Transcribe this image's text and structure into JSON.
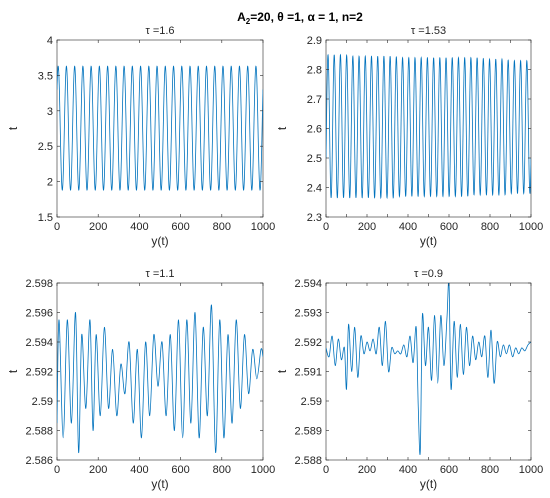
{
  "figure": {
    "title_main": "A",
    "title_sub": "2",
    "title_rest": "=20, θ =1, α = 1, n=2"
  },
  "chart_data": [
    {
      "type": "line",
      "title": "τ =1.6",
      "xlabel": "y(t)",
      "ylabel": "t",
      "xlim": [
        0,
        1000
      ],
      "ylim": [
        1.5,
        4
      ],
      "xticks": [
        0,
        200,
        400,
        600,
        800,
        1000
      ],
      "xtick_labels": [
        "0",
        "200",
        "400",
        "600",
        "800",
        "1000"
      ],
      "yticks": [
        1.5,
        2,
        2.5,
        3,
        3.5,
        4
      ],
      "ytick_labels": [
        "1.5",
        "2",
        "2.5",
        "3",
        "3.5",
        "4"
      ],
      "grid": false,
      "color": "#0072BD",
      "series": [
        {
          "signal": "periodic",
          "approx_cycles": 25,
          "start_value": 3.3,
          "x": [
            0,
            20,
            40,
            60,
            80,
            100,
            120,
            140,
            160,
            180,
            200,
            220,
            240,
            260,
            280,
            300,
            320,
            340,
            360,
            380,
            400,
            420,
            440,
            460,
            480,
            500,
            520,
            540,
            560,
            580,
            600,
            620,
            640,
            660,
            680,
            700,
            720,
            740,
            760,
            780,
            800,
            820,
            840,
            860,
            880,
            900,
            920,
            940,
            960,
            980,
            1000
          ],
          "y": [
            3.3,
            3.63,
            1.88,
            3.63,
            1.88,
            3.63,
            1.88,
            3.63,
            1.88,
            3.63,
            1.88,
            3.63,
            1.88,
            3.63,
            1.88,
            3.63,
            1.88,
            3.63,
            1.88,
            3.63,
            1.88,
            3.63,
            1.88,
            3.63,
            1.88,
            3.63,
            1.88,
            3.63,
            1.88,
            3.63,
            1.88,
            3.63,
            1.88,
            3.63,
            1.88,
            3.63,
            1.88,
            3.63,
            1.88,
            3.63,
            1.88,
            3.63,
            1.88,
            3.63,
            1.88,
            3.63,
            1.88,
            3.63,
            1.88,
            3.63,
            2.0
          ]
        }
      ]
    },
    {
      "type": "line",
      "title": "τ =1.53",
      "xlabel": "y(t)",
      "ylabel": "t",
      "xlim": [
        0,
        1000
      ],
      "ylim": [
        2.3,
        2.9
      ],
      "xticks": [
        0,
        100,
        200,
        300,
        400,
        500,
        600,
        700,
        800,
        900,
        1000
      ],
      "xtick_labels": [
        "0",
        "100",
        "200",
        "300",
        "400",
        "500",
        "600",
        "700",
        "800",
        "900",
        "1000"
      ],
      "yticks": [
        2.3,
        2.4,
        2.5,
        2.6,
        2.7,
        2.8,
        2.9
      ],
      "ytick_labels": [
        "2.3",
        "2.4",
        "2.5",
        "2.6",
        "2.7",
        "2.8",
        "2.9"
      ],
      "grid": false,
      "color": "#0072BD",
      "series": [
        {
          "signal": "periodic",
          "approx_cycles": 33,
          "start_value": 2.5,
          "x": [
            0,
            30,
            60,
            90,
            120,
            150,
            180,
            210,
            240,
            270,
            300,
            330,
            360,
            390,
            420,
            450,
            480,
            510,
            540,
            570,
            600,
            630,
            660,
            690,
            720,
            750,
            780,
            810,
            840,
            870,
            900,
            930,
            960,
            990,
            1000
          ],
          "max_env": [
            2.85,
            2.85,
            2.85,
            2.85,
            2.845,
            2.845,
            2.845,
            2.845,
            2.845,
            2.845,
            2.845,
            2.845,
            2.84,
            2.84,
            2.84,
            2.84,
            2.84,
            2.84,
            2.84,
            2.84,
            2.84,
            2.84,
            2.84,
            2.84,
            2.84,
            2.84,
            2.835,
            2.835,
            2.835,
            2.835,
            2.83,
            2.83,
            2.83,
            2.83,
            2.83
          ],
          "min_env": [
            2.365,
            2.365,
            2.365,
            2.365,
            2.365,
            2.365,
            2.365,
            2.365,
            2.365,
            2.365,
            2.365,
            2.365,
            2.37,
            2.37,
            2.37,
            2.37,
            2.37,
            2.37,
            2.37,
            2.37,
            2.37,
            2.37,
            2.37,
            2.37,
            2.375,
            2.375,
            2.375,
            2.375,
            2.375,
            2.375,
            2.38,
            2.38,
            2.38,
            2.38,
            2.38
          ]
        }
      ]
    },
    {
      "type": "line",
      "title": "τ =1.1",
      "xlabel": "y(t)",
      "ylabel": "t",
      "xlim": [
        0,
        1000
      ],
      "ylim": [
        2.586,
        2.598
      ],
      "xticks": [
        0,
        200,
        400,
        600,
        800,
        1000
      ],
      "xtick_labels": [
        "0",
        "200",
        "400",
        "600",
        "800",
        "1000"
      ],
      "yticks": [
        2.586,
        2.588,
        2.59,
        2.592,
        2.594,
        2.596,
        2.598
      ],
      "ytick_labels": [
        "2.586",
        "2.588",
        "2.59",
        "2.592",
        "2.594",
        "2.596",
        "2.598"
      ],
      "grid": false,
      "color": "#0072BD",
      "series": [
        {
          "signal": "irregular oscillation",
          "x": [
            0,
            10,
            30,
            50,
            70,
            90,
            105,
            120,
            140,
            160,
            175,
            190,
            210,
            230,
            250,
            270,
            290,
            310,
            330,
            350,
            370,
            390,
            410,
            430,
            450,
            470,
            490,
            510,
            530,
            550,
            570,
            590,
            610,
            630,
            650,
            670,
            690,
            710,
            730,
            750,
            770,
            790,
            810,
            830,
            850,
            870,
            890,
            910,
            930,
            950,
            970,
            990,
            1000
          ],
          "y": [
            2.5885,
            2.5955,
            2.5875,
            2.5955,
            2.5885,
            2.596,
            2.5865,
            2.5945,
            2.5895,
            2.5955,
            2.588,
            2.5945,
            2.589,
            2.595,
            2.5895,
            2.5935,
            2.589,
            2.5925,
            2.5905,
            2.594,
            2.5885,
            2.5935,
            2.5875,
            2.594,
            2.589,
            2.5945,
            2.591,
            2.594,
            2.589,
            2.5945,
            2.588,
            2.5955,
            2.5875,
            2.5955,
            2.5885,
            2.596,
            2.5875,
            2.595,
            2.589,
            2.5965,
            2.5865,
            2.5955,
            2.5875,
            2.5945,
            2.5885,
            2.5955,
            2.5895,
            2.5945,
            2.5905,
            2.5935,
            2.5915,
            2.5935,
            2.593
          ]
        }
      ]
    },
    {
      "type": "line",
      "title": "τ =0.9",
      "xlabel": "y(t)",
      "ylabel": "t",
      "xlim": [
        0,
        1000
      ],
      "ylim": [
        2.588,
        2.594
      ],
      "xticks": [
        0,
        100,
        200,
        300,
        400,
        500,
        600,
        700,
        800,
        900,
        1000
      ],
      "xtick_labels": [
        "0",
        "100",
        "200",
        "300",
        "400",
        "500",
        "600",
        "700",
        "800",
        "900",
        "1000"
      ],
      "yticks": [
        2.588,
        2.589,
        2.59,
        2.591,
        2.592,
        2.593,
        2.594
      ],
      "ytick_labels": [
        "2.588",
        "2.589",
        "2.59",
        "2.591",
        "2.592",
        "2.593",
        "2.594"
      ],
      "grid": false,
      "color": "#0072BD",
      "series": [
        {
          "signal": "damped irregular oscillation",
          "x": [
            0,
            15,
            30,
            45,
            60,
            75,
            90,
            100,
            110,
            125,
            140,
            155,
            170,
            185,
            200,
            215,
            230,
            245,
            260,
            275,
            290,
            305,
            320,
            335,
            350,
            365,
            380,
            395,
            410,
            425,
            440,
            450,
            460,
            470,
            485,
            500,
            515,
            530,
            545,
            560,
            575,
            590,
            600,
            610,
            625,
            640,
            655,
            670,
            685,
            700,
            715,
            730,
            745,
            760,
            775,
            790,
            805,
            820,
            835,
            850,
            865,
            880,
            895,
            910,
            925,
            940,
            955,
            970,
            985,
            1000
          ],
          "y": [
            2.5918,
            2.5915,
            2.5922,
            2.5912,
            2.5921,
            2.5914,
            2.5918,
            2.5904,
            2.5926,
            2.591,
            2.5925,
            2.5908,
            2.5922,
            2.5916,
            2.592,
            2.5917,
            2.5921,
            2.5916,
            2.5925,
            2.5912,
            2.5927,
            2.591,
            2.5918,
            2.5916,
            2.5917,
            2.5916,
            2.5919,
            2.5915,
            2.5922,
            2.5913,
            2.5925,
            2.5898,
            2.5883,
            2.5929,
            2.5912,
            2.5925,
            2.5907,
            2.5929,
            2.5906,
            2.5929,
            2.5912,
            2.5928,
            2.594,
            2.5904,
            2.5927,
            2.5908,
            2.5926,
            2.5909,
            2.5925,
            2.5912,
            2.5922,
            2.5914,
            2.592,
            2.5915,
            2.5922,
            2.5908,
            2.5924,
            2.5906,
            2.592,
            2.5915,
            2.5919,
            2.5916,
            2.5919,
            2.5915,
            2.5918,
            2.5916,
            2.5918,
            2.5917,
            2.5919,
            2.592
          ]
        }
      ]
    }
  ]
}
